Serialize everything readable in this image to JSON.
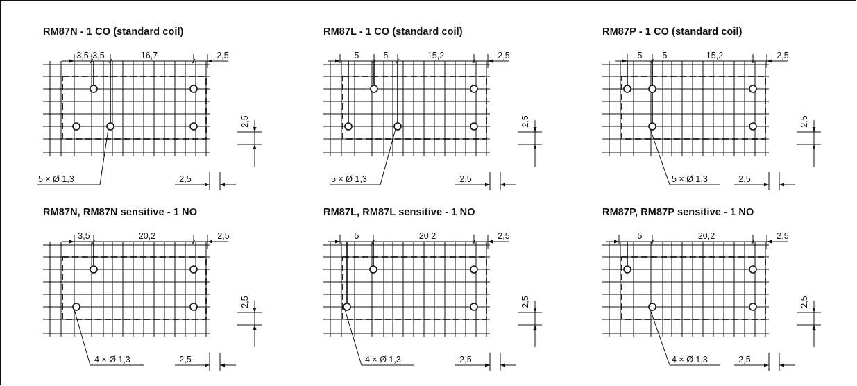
{
  "panels": [
    {
      "title": "RM87N - 1 CO (standard coil)",
      "pitch_labels": [
        "3,5",
        "3,5",
        "16,7",
        "2,5"
      ],
      "grid_label": "2,5",
      "bottom_label": "2,5",
      "hole_label": "5 × Ø 1,3"
    },
    {
      "title": "RM87L - 1 CO (standard coil)",
      "pitch_labels": [
        "5",
        "5",
        "15,2",
        "2,5"
      ],
      "grid_label": "2,5",
      "bottom_label": "2,5",
      "hole_label": "5 × Ø 1,3"
    },
    {
      "title": "RM87P - 1 CO (standard coil)",
      "pitch_labels": [
        "5",
        "5",
        "15,2",
        "2,5"
      ],
      "grid_label": "2,5",
      "bottom_label": "2,5",
      "hole_label": "5 × Ø 1,3"
    },
    {
      "title": "RM87N, RM87N sensitive - 1 NO",
      "pitch_labels": [
        "3,5",
        "20,2",
        "2,5"
      ],
      "grid_label": "2,5",
      "bottom_label": "2,5",
      "hole_label": "4 × Ø 1,3"
    },
    {
      "title": "RM87L, RM87L sensitive - 1 NO",
      "pitch_labels": [
        "5",
        "20,2",
        "2,5"
      ],
      "grid_label": "2,5",
      "bottom_label": "2,5",
      "hole_label": "4 × Ø 1,3"
    },
    {
      "title": "RM87P, RM87P sensitive - 1 NO",
      "pitch_labels": [
        "5",
        "20,2",
        "2,5"
      ],
      "grid_label": "2,5",
      "bottom_label": "2,5",
      "hole_label": "4 × Ø 1,3"
    }
  ]
}
